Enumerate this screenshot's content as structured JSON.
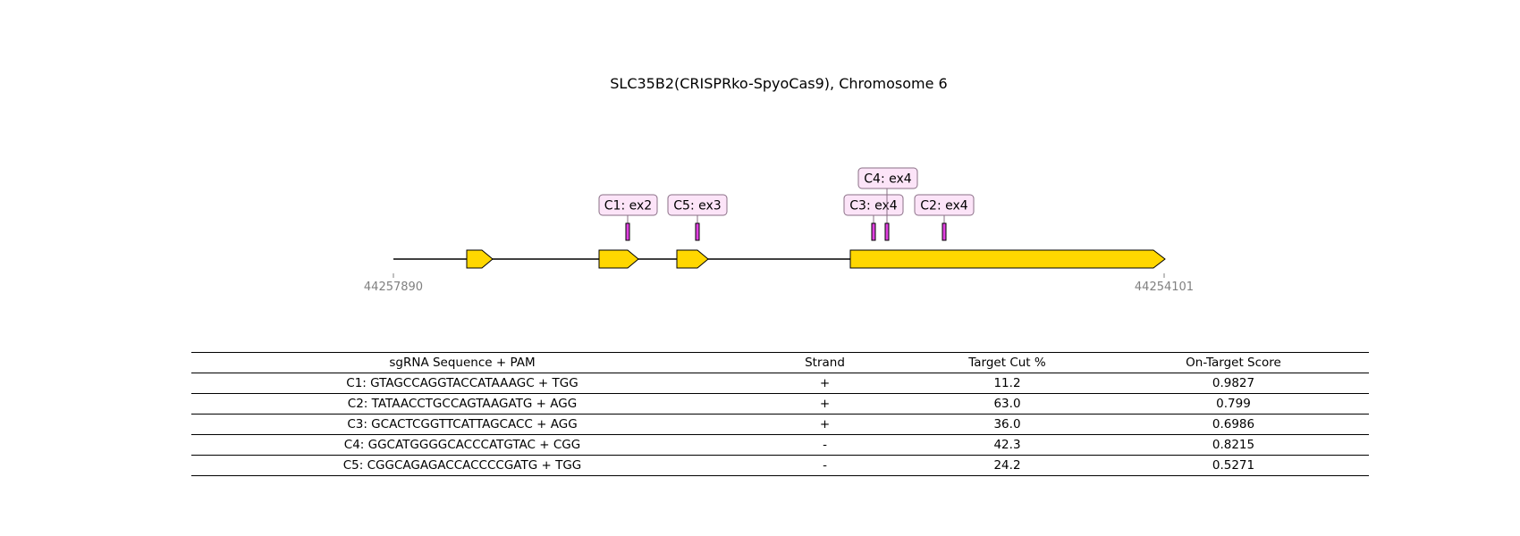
{
  "title": "SLC35B2(CRISPRko-SpyoCas9), Chromosome 6",
  "gene_track": {
    "coord_start": "44257890",
    "coord_end": "44254101",
    "exons": [
      "exon-1",
      "exon-2",
      "exon-3",
      "exon-4"
    ],
    "exon_color": "#FFD700",
    "guide_color": "#E040E0",
    "label_fill": "#FCE4F8",
    "label_border": "#8A6F86",
    "guides": [
      {
        "label": "C1: ex2"
      },
      {
        "label": "C5: ex3"
      },
      {
        "label": "C3: ex4"
      },
      {
        "label": "C4: ex4"
      },
      {
        "label": "C2: ex4"
      }
    ]
  },
  "table": {
    "headers": [
      "sgRNA Sequence + PAM",
      "Strand",
      "Target Cut %",
      "On-Target Score"
    ],
    "rows": [
      [
        "C1: GTAGCCAGGTACCATAAAGC + TGG",
        "+",
        "11.2",
        "0.9827"
      ],
      [
        "C2: TATAACCTGCCAGTAAGATG + AGG",
        "+",
        "63.0",
        "0.799"
      ],
      [
        "C3: GCACTCGGTTCATTAGCACC + AGG",
        "+",
        "36.0",
        "0.6986"
      ],
      [
        "C4: GGCATGGGGCACCCATGTAC + CGG",
        "-",
        "42.3",
        "0.8215"
      ],
      [
        "C5: CGGCAGAGACCACCCCGATG + TGG",
        "-",
        "24.2",
        "0.5271"
      ]
    ]
  }
}
